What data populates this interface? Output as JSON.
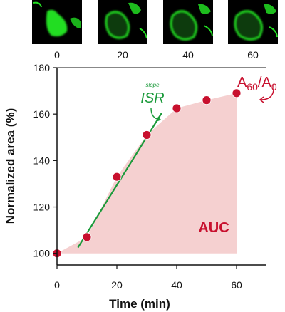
{
  "chart_data": {
    "type": "scatter",
    "xlabel": "Time (min)",
    "ylabel": "Normalized area (%)",
    "xlim": [
      0,
      70
    ],
    "ylim": [
      95,
      180
    ],
    "x_ticks": [
      0,
      20,
      40,
      60
    ],
    "y_ticks": [
      100,
      120,
      140,
      160,
      180
    ],
    "series": [
      {
        "x": [
          0,
          10,
          20,
          30,
          40,
          50,
          60
        ],
        "values": [
          100,
          107,
          133,
          151,
          162.5,
          166,
          169
        ],
        "marker_color": "#c8102e"
      }
    ],
    "fit_line": {
      "x": [
        7,
        35
      ],
      "y": [
        102.5,
        160.5
      ],
      "color": "#1a9a3a"
    },
    "auc_fill_color": "#f5d0d0",
    "grid": false,
    "annotations": {
      "auc": "AUC",
      "isr": "ISR",
      "slope": "slope",
      "a_ratio": {
        "a": "A",
        "sub1": "60",
        "slash": "/",
        "sub2": "0"
      }
    },
    "image_strip": {
      "timepoints": [
        "0",
        "20",
        "40",
        "60"
      ],
      "stain_color": "#22dd22"
    }
  }
}
